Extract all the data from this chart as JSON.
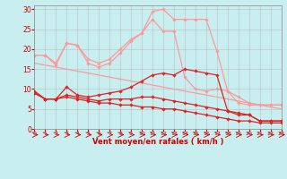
{
  "x": [
    0,
    1,
    2,
    3,
    4,
    5,
    6,
    7,
    8,
    9,
    10,
    11,
    12,
    13,
    14,
    15,
    16,
    17,
    18,
    19,
    20,
    21,
    22,
    23
  ],
  "series": [
    {
      "y": [
        9.5,
        7.5,
        7.5,
        10.5,
        8.5,
        8.0,
        8.5,
        9.0,
        9.5,
        10.5,
        12.0,
        13.5,
        14.0,
        13.5,
        15.0,
        14.5,
        14.0,
        13.5,
        4.5,
        3.5,
        3.5,
        2.0,
        2.0,
        2.0
      ],
      "color": "#dd2222",
      "marker": "D",
      "markersize": 1.8,
      "linewidth": 0.9,
      "zorder": 5
    },
    {
      "y": [
        9.0,
        7.5,
        7.5,
        8.5,
        8.0,
        7.5,
        7.0,
        7.5,
        7.5,
        7.5,
        8.0,
        8.0,
        7.5,
        7.0,
        6.5,
        6.0,
        5.5,
        5.0,
        4.5,
        4.0,
        3.5,
        2.0,
        2.0,
        2.0
      ],
      "color": "#dd2222",
      "marker": "D",
      "markersize": 1.8,
      "linewidth": 0.9,
      "zorder": 4
    },
    {
      "y": [
        9.0,
        7.5,
        7.5,
        8.0,
        7.5,
        7.0,
        6.5,
        6.5,
        6.0,
        6.0,
        5.5,
        5.5,
        5.0,
        5.0,
        4.5,
        4.0,
        3.5,
        3.0,
        2.5,
        2.0,
        2.0,
        1.5,
        1.5,
        1.5
      ],
      "color": "#dd2222",
      "marker": "D",
      "markersize": 1.8,
      "linewidth": 0.9,
      "zorder": 3
    },
    {
      "y": [
        18.5,
        18.5,
        16.5,
        21.5,
        21.0,
        17.5,
        16.5,
        17.5,
        20.0,
        22.5,
        24.0,
        29.5,
        30.0,
        27.5,
        27.5,
        27.5,
        27.5,
        19.5,
        9.5,
        6.5,
        6.0,
        6.0,
        6.0,
        6.0
      ],
      "color": "#ff9999",
      "marker": "D",
      "markersize": 1.8,
      "linewidth": 0.9,
      "zorder": 2
    },
    {
      "y": [
        18.5,
        18.5,
        16.0,
        21.5,
        21.0,
        16.5,
        15.5,
        16.5,
        19.0,
        22.0,
        24.0,
        27.5,
        24.5,
        24.5,
        13.0,
        10.0,
        9.5,
        10.0,
        9.5,
        8.0,
        6.5,
        6.0,
        6.0,
        6.0
      ],
      "color": "#ff9999",
      "marker": "D",
      "markersize": 1.8,
      "linewidth": 0.9,
      "zorder": 1
    },
    {
      "y": [
        16.5,
        16.0,
        15.5,
        15.0,
        14.5,
        14.0,
        13.5,
        13.0,
        12.5,
        12.0,
        11.5,
        11.0,
        10.5,
        10.0,
        9.5,
        9.0,
        8.5,
        8.0,
        7.5,
        7.0,
        6.5,
        6.0,
        5.5,
        5.0
      ],
      "color": "#ff9999",
      "marker": null,
      "markersize": 0,
      "linewidth": 0.9,
      "zorder": 0
    }
  ],
  "xlabel": "Vent moyen/en rafales ( km/h )",
  "xlim": [
    0,
    23
  ],
  "ylim": [
    0,
    31
  ],
  "yticks": [
    0,
    5,
    10,
    15,
    20,
    25,
    30
  ],
  "xticks": [
    0,
    1,
    2,
    3,
    4,
    5,
    6,
    7,
    8,
    9,
    10,
    11,
    12,
    13,
    14,
    15,
    16,
    17,
    18,
    19,
    20,
    21,
    22,
    23
  ],
  "bg_color": "#c8eef0",
  "grid_color": "#b0b0b0",
  "tick_label_color": "#cc0000",
  "xlabel_color": "#cc0000"
}
